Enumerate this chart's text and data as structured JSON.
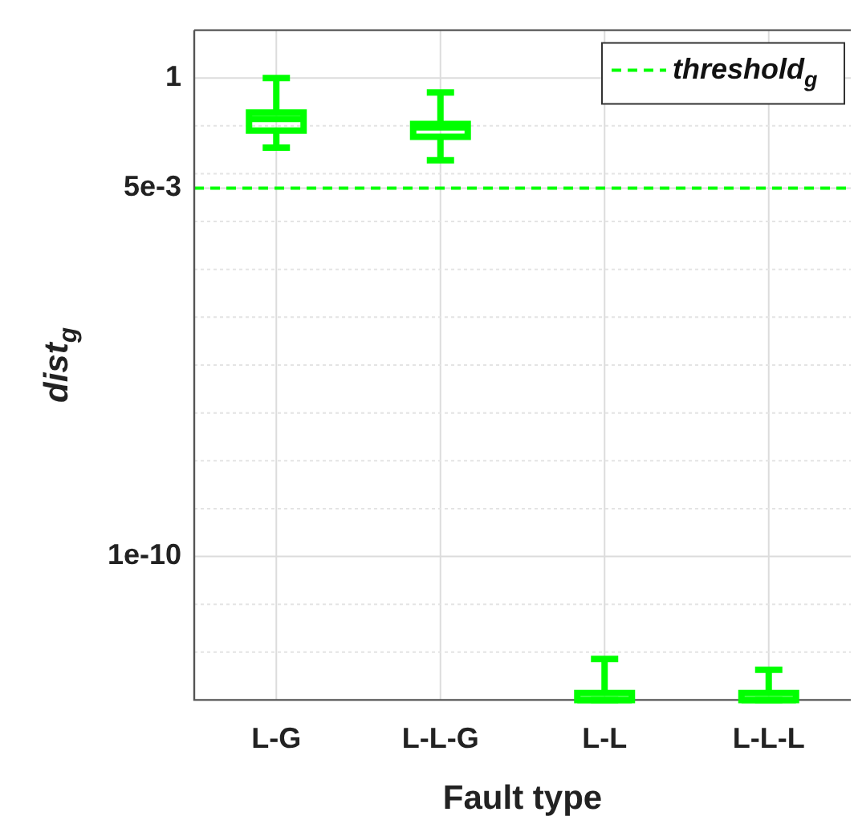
{
  "chart_data": {
    "type": "box",
    "xlabel": "Fault type",
    "ylabel": "dist$_{g}$",
    "categories": [
      "L-G",
      "L-L-G",
      "L-L",
      "L-L-L"
    ],
    "series": [
      {
        "color": "#00ff00",
        "boxes": [
          {
            "low": 0.035,
            "q1": 0.08,
            "median": 0.14,
            "q3": 0.19,
            "high": 1
          },
          {
            "low": 0.019,
            "q1": 0.059,
            "median": 0.093,
            "q3": 0.11,
            "high": 0.5
          },
          {
            "low": 1e-13,
            "q1": 1e-13,
            "median": 1e-13,
            "q3": 1.4e-13,
            "high": 7.2e-13
          },
          {
            "low": 1e-13,
            "q1": 1e-13,
            "median": 1e-13,
            "q3": 1.4e-13,
            "high": 4.3e-13
          }
        ]
      }
    ],
    "log": true,
    "ylim": [
      1e-13,
      10
    ],
    "yticks": [
      {
        "value": 1e-12,
        "label": null
      },
      {
        "value": 1e-11,
        "label": null
      },
      {
        "value": 1e-10,
        "label": "1e-10"
      },
      {
        "value": 1e-09,
        "label": null
      },
      {
        "value": 1e-08,
        "label": null
      },
      {
        "value": 1e-07,
        "label": null
      },
      {
        "value": 1e-06,
        "label": null
      },
      {
        "value": 1e-05,
        "label": null
      },
      {
        "value": 0.0001,
        "label": null
      },
      {
        "value": 0.001,
        "label": null
      },
      {
        "value": 0.005,
        "label": "5e-3"
      },
      {
        "value": 0.01,
        "label": null
      },
      {
        "value": 0.1,
        "label": null
      },
      1
    ],
    "ref_lines": [
      {
        "axis": "y",
        "value": 0.005,
        "label": "threshold$_{g}$",
        "color": "#00ff00",
        "line_style": "dashed"
      }
    ],
    "grid": true,
    "legend": "top right"
  }
}
